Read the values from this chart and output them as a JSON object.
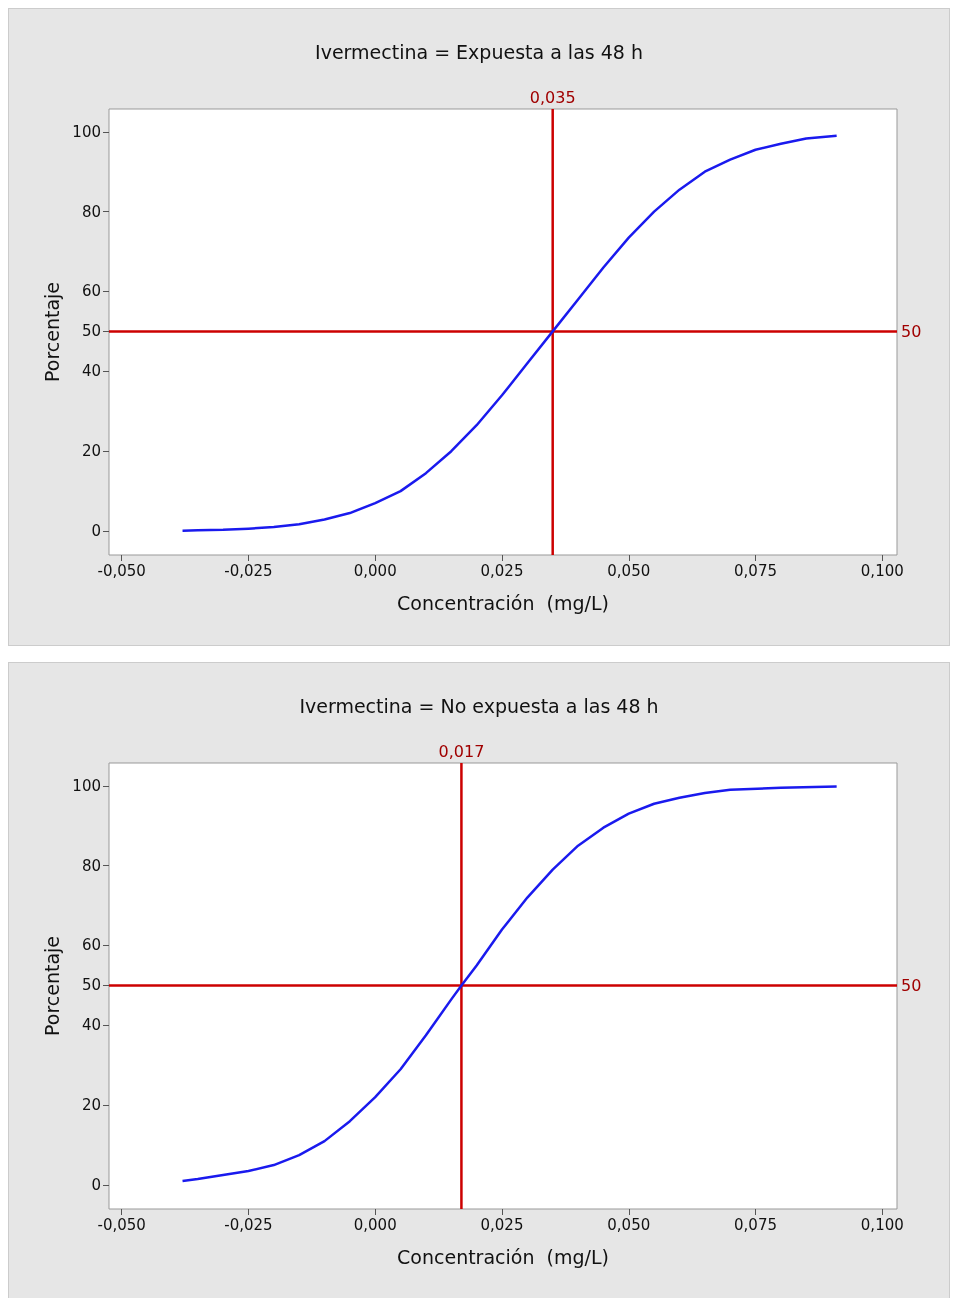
{
  "chart_data": [
    {
      "type": "line",
      "title": "Ivermectina = Expuesta a las 48 h",
      "xlabel": "Concentración  (mg/L)",
      "ylabel": "Porcentaje",
      "marker": "none",
      "grid": false,
      "xlim": [
        -0.0525,
        0.1029
      ],
      "xticks": [
        {
          "value": -0.05,
          "label": "-0,050"
        },
        {
          "value": -0.025,
          "label": "-0,025"
        },
        {
          "value": 0,
          "label": "0,000"
        },
        {
          "value": 0.025,
          "label": "0,025"
        },
        {
          "value": 0.05,
          "label": "0,050"
        },
        {
          "value": 0.075,
          "label": "0,075"
        },
        {
          "value": 0.1,
          "label": "0,100"
        }
      ],
      "ylim": [
        -6,
        105.7
      ],
      "yticks": [
        0,
        20,
        40,
        50,
        60,
        80,
        100
      ],
      "series": [
        {
          "color": "#1a1aee",
          "x": [
            -0.038,
            -0.035,
            -0.03,
            -0.025,
            -0.02,
            -0.015,
            -0.01,
            -0.005,
            0,
            0.005,
            0.01,
            0.015,
            0.02,
            0.025,
            0.03,
            0.035,
            0.04,
            0.045,
            0.05,
            0.055,
            0.06,
            0.065,
            0.07,
            0.075,
            0.08,
            0.085,
            0.091
          ],
          "values": [
            0.1,
            0.2,
            0.3,
            0.6,
            1,
            1.7,
            2.9,
            4.5,
            7,
            10,
            14.5,
            20,
            26.5,
            34,
            42,
            50,
            58,
            66,
            73.5,
            80,
            85.5,
            90,
            93,
            95.5,
            97,
            98.3,
            99
          ]
        }
      ],
      "ref_lines": [
        {
          "axis": "x",
          "value": 0.035,
          "label": "0,035",
          "color": "#cc0000"
        },
        {
          "axis": "y",
          "value": 50,
          "label": "50",
          "color": "#cc0000"
        }
      ]
    },
    {
      "type": "line",
      "title": "Ivermectina = No expuesta a las 48 h",
      "xlabel": "Concentración  (mg/L)",
      "ylabel": "Porcentaje",
      "marker": "none",
      "grid": false,
      "xlim": [
        -0.0525,
        0.1029
      ],
      "xticks": [
        {
          "value": -0.05,
          "label": "-0,050"
        },
        {
          "value": -0.025,
          "label": "-0,025"
        },
        {
          "value": 0,
          "label": "0,000"
        },
        {
          "value": 0.025,
          "label": "0,025"
        },
        {
          "value": 0.05,
          "label": "0,050"
        },
        {
          "value": 0.075,
          "label": "0,075"
        },
        {
          "value": 0.1,
          "label": "0,100"
        }
      ],
      "ylim": [
        -6,
        105.7
      ],
      "yticks": [
        0,
        20,
        40,
        50,
        60,
        80,
        100
      ],
      "series": [
        {
          "color": "#1a1aee",
          "x": [
            -0.038,
            -0.035,
            -0.03,
            -0.025,
            -0.02,
            -0.015,
            -0.01,
            -0.005,
            0,
            0.005,
            0.01,
            0.015,
            0.017,
            0.02,
            0.025,
            0.03,
            0.035,
            0.04,
            0.045,
            0.05,
            0.055,
            0.06,
            0.065,
            0.07,
            0.08,
            0.091
          ],
          "values": [
            1,
            1.5,
            2.5,
            3.5,
            5,
            7.5,
            11,
            16,
            22,
            29,
            37.5,
            46.5,
            50,
            55,
            64,
            72,
            79,
            85,
            89.5,
            93,
            95.5,
            97,
            98.2,
            99,
            99.5,
            99.8
          ]
        }
      ],
      "ref_lines": [
        {
          "axis": "x",
          "value": 0.017,
          "label": "0,017",
          "color": "#cc0000"
        },
        {
          "axis": "y",
          "value": 50,
          "label": "50",
          "color": "#cc0000"
        }
      ]
    }
  ]
}
